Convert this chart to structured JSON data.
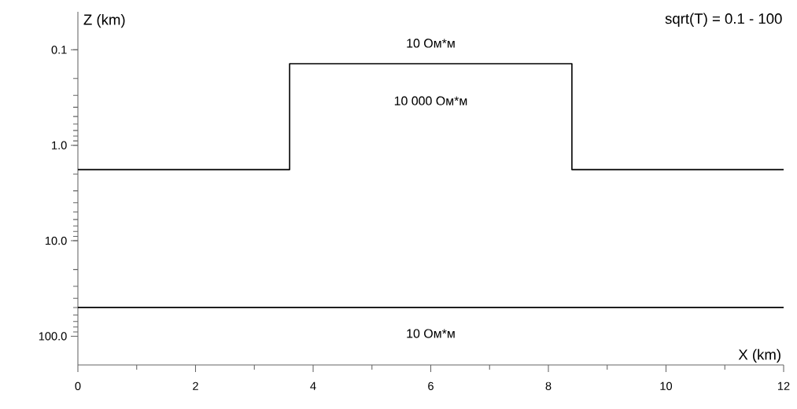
{
  "chart_data": {
    "type": "line",
    "xlabel": "X (km)",
    "ylabel": "Z (km)",
    "series": [
      {
        "color": "#000000",
        "x": [
          0,
          3.6,
          3.6,
          8.4,
          8.4,
          12
        ],
        "values": [
          1.8,
          1.8,
          0.14,
          0.14,
          1.8,
          1.8
        ]
      },
      {
        "color": "#000000",
        "x": [
          0,
          12
        ],
        "values": [
          50,
          50
        ]
      }
    ],
    "xlim": [
      0,
      12
    ],
    "xticks": [
      0,
      2,
      4,
      6,
      8,
      10,
      12
    ],
    "ylim": [
      200,
      0.04
    ],
    "log": true,
    "yticks": [
      0.1,
      {
        "value": 1,
        "label": "1.0"
      },
      {
        "value": 10,
        "label": "10.0"
      },
      {
        "value": 100,
        "label": "100.0"
      }
    ],
    "marker": "none",
    "line_style": "solid",
    "annotations": [
      "10 Ом*м",
      "10 000 Ом*м",
      "10 Ом*м",
      "sqrt(T) = 0.1 - 100"
    ]
  }
}
